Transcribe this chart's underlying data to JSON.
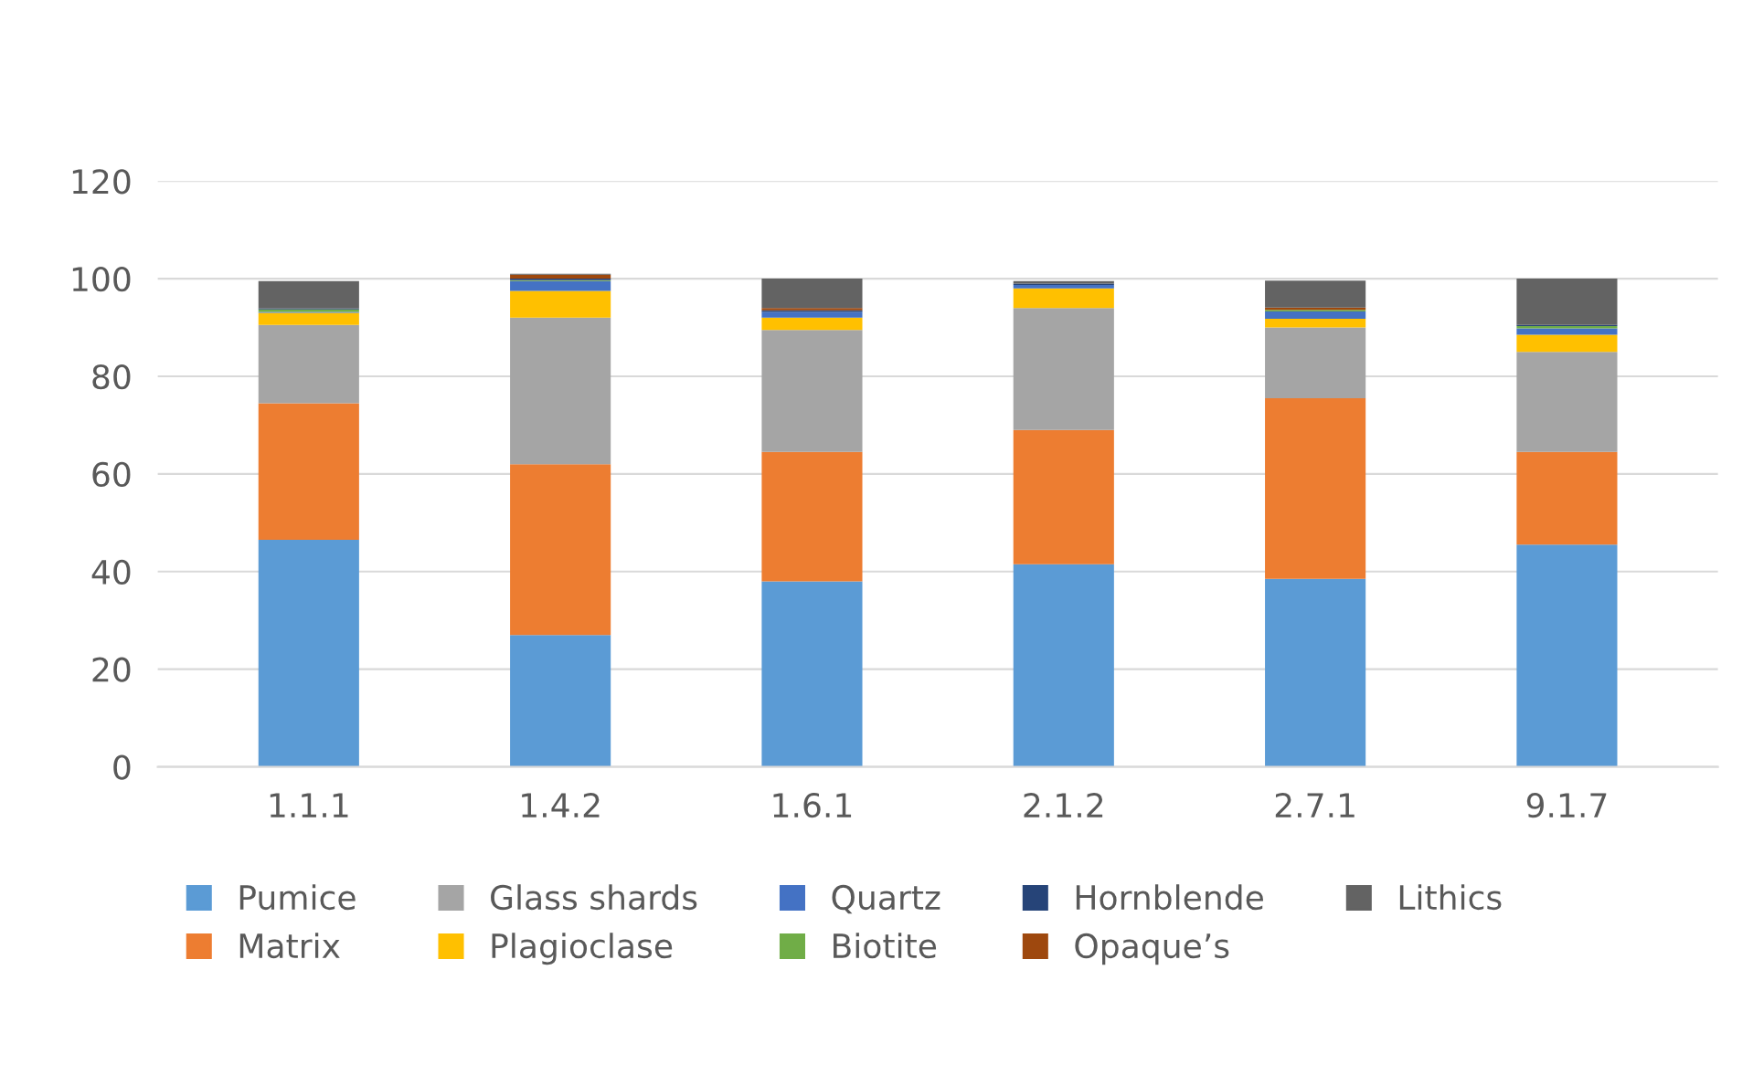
{
  "chart_data": {
    "type": "bar",
    "stacked": true,
    "categories": [
      "1.1.1",
      "1.4.2",
      "1.6.1",
      "2.1.2",
      "2.7.1",
      "9.1.7"
    ],
    "series": [
      {
        "name": "Pumice",
        "color": "#5b9bd5",
        "values": [
          46.5,
          27,
          38,
          41.5,
          38.5,
          45.5
        ]
      },
      {
        "name": "Matrix",
        "color": "#ed7d31",
        "values": [
          28,
          35,
          26.5,
          27.5,
          37,
          19
        ]
      },
      {
        "name": "Glass shards",
        "color": "#a5a5a5",
        "values": [
          16,
          30,
          25,
          25,
          14.5,
          20.5
        ]
      },
      {
        "name": "Plagioclase",
        "color": "#ffc000",
        "values": [
          2.5,
          5.5,
          2.5,
          4,
          1.8,
          3.5
        ]
      },
      {
        "name": "Quartz",
        "color": "#4472c4",
        "values": [
          0.2,
          2,
          1.2,
          0.7,
          1.5,
          1.3
        ]
      },
      {
        "name": "Biotite",
        "color": "#70ad47",
        "values": [
          0.5,
          0.2,
          0,
          0,
          0.3,
          0.5
        ]
      },
      {
        "name": "Hornblende",
        "color": "#264478",
        "values": [
          0.2,
          0.3,
          0.3,
          0.3,
          0,
          0.2
        ]
      },
      {
        "name": "Opaque’s",
        "color": "#9e480e",
        "values": [
          0,
          0.8,
          0.5,
          0,
          0.5,
          0
        ]
      },
      {
        "name": "Lithics",
        "color": "#636363",
        "values": [
          5.6,
          0.2,
          6,
          0.5,
          5.5,
          9.5
        ]
      }
    ],
    "ylim": [
      0,
      120
    ],
    "yticks": [
      0,
      20,
      40,
      60,
      80,
      100,
      120
    ],
    "grid": "y",
    "legend": "bottom"
  }
}
